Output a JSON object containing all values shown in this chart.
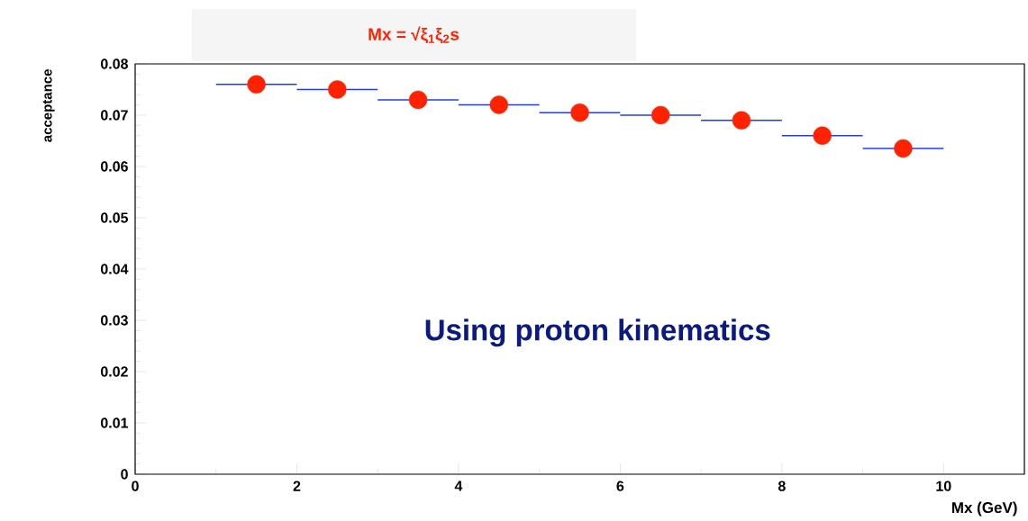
{
  "chart_data": {
    "type": "scatter",
    "title": "Mx = √ξ$_{1}$ξ$_{2}$s",
    "xlabel": "Mx (GeV)",
    "ylabel": "acceptance",
    "annotations": [
      "Using proton kinematics"
    ],
    "x": [
      1.5,
      2.5,
      3.5,
      4.5,
      5.5,
      6.5,
      7.5,
      8.5,
      9.5
    ],
    "values": [
      0.076,
      0.075,
      0.073,
      0.072,
      0.0705,
      0.07,
      0.069,
      0.066,
      0.0635
    ],
    "xerrors": [
      0.5,
      0.5,
      0.5,
      0.5,
      0.5,
      0.5,
      0.5,
      0.5,
      0.5
    ],
    "color": "#ff2200",
    "marker": "circle",
    "xlim": [
      0,
      11
    ],
    "ylim": [
      0,
      0.08
    ],
    "xticks": [
      0,
      2,
      4,
      6,
      8,
      10
    ],
    "yticks": [
      0,
      0.01,
      0.02,
      0.03,
      0.04,
      0.05,
      0.06,
      0.07,
      0.08
    ],
    "grid": false
  }
}
